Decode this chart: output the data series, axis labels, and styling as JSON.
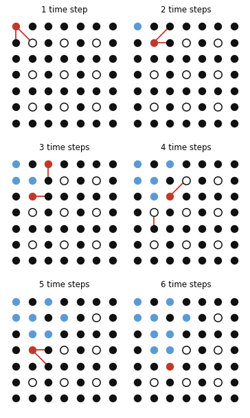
{
  "n_cols": 7,
  "n_rows": 7,
  "panels": [
    {
      "label": "1 time step",
      "open_circles": [
        [
          1,
          1
        ],
        [
          3,
          1
        ],
        [
          5,
          1
        ],
        [
          1,
          3
        ],
        [
          3,
          3
        ],
        [
          5,
          3
        ],
        [
          1,
          5
        ],
        [
          3,
          5
        ],
        [
          5,
          5
        ]
      ],
      "blue_circles": [],
      "red_circles": [
        [
          0,
          0
        ]
      ],
      "red_lines": [
        [
          [
            0,
            0
          ],
          [
            0,
            1
          ]
        ],
        [
          [
            0,
            0
          ],
          [
            1,
            1
          ]
        ]
      ]
    },
    {
      "label": "2 time steps",
      "open_circles": [
        [
          1,
          1
        ],
        [
          3,
          1
        ],
        [
          5,
          1
        ],
        [
          1,
          3
        ],
        [
          3,
          3
        ],
        [
          5,
          3
        ],
        [
          1,
          5
        ],
        [
          3,
          5
        ],
        [
          5,
          5
        ]
      ],
      "blue_circles": [
        [
          0,
          0
        ]
      ],
      "red_circles": [
        [
          1,
          1
        ]
      ],
      "red_lines": [
        [
          [
            1,
            1
          ],
          [
            2,
            0
          ]
        ],
        [
          [
            1,
            1
          ],
          [
            2,
            1
          ]
        ]
      ]
    },
    {
      "label": "3 time steps",
      "open_circles": [
        [
          1,
          1
        ],
        [
          3,
          1
        ],
        [
          5,
          1
        ],
        [
          1,
          3
        ],
        [
          3,
          3
        ],
        [
          5,
          3
        ],
        [
          1,
          5
        ],
        [
          3,
          5
        ],
        [
          5,
          5
        ]
      ],
      "blue_circles": [
        [
          0,
          0
        ],
        [
          0,
          1
        ],
        [
          1,
          1
        ]
      ],
      "red_circles": [
        [
          2,
          0
        ],
        [
          1,
          2
        ]
      ],
      "red_lines": [
        [
          [
            2,
            0
          ],
          [
            2,
            1
          ]
        ],
        [
          [
            1,
            2
          ],
          [
            2,
            2
          ]
        ]
      ]
    },
    {
      "label": "4 time steps",
      "open_circles": [
        [
          1,
          1
        ],
        [
          3,
          1
        ],
        [
          5,
          1
        ],
        [
          1,
          3
        ],
        [
          3,
          3
        ],
        [
          5,
          3
        ],
        [
          1,
          5
        ],
        [
          3,
          5
        ],
        [
          5,
          5
        ]
      ],
      "blue_circles": [
        [
          0,
          0
        ],
        [
          0,
          1
        ],
        [
          1,
          1
        ],
        [
          2,
          0
        ],
        [
          1,
          2
        ]
      ],
      "red_circles": [
        [
          2,
          2
        ]
      ],
      "red_lines": [
        [
          [
            2,
            2
          ],
          [
            3,
            1
          ]
        ],
        [
          [
            1,
            3
          ],
          [
            1,
            4
          ]
        ]
      ]
    },
    {
      "label": "5 time steps",
      "open_circles": [
        [
          1,
          1
        ],
        [
          3,
          1
        ],
        [
          5,
          1
        ],
        [
          1,
          3
        ],
        [
          3,
          3
        ],
        [
          5,
          3
        ],
        [
          1,
          5
        ],
        [
          3,
          5
        ],
        [
          5,
          5
        ]
      ],
      "blue_circles": [
        [
          0,
          0
        ],
        [
          0,
          1
        ],
        [
          1,
          1
        ],
        [
          2,
          0
        ],
        [
          1,
          2
        ],
        [
          2,
          2
        ],
        [
          3,
          1
        ]
      ],
      "red_circles": [
        [
          1,
          3
        ]
      ],
      "red_lines": [
        [
          [
            1,
            3
          ],
          [
            2,
            3
          ]
        ],
        [
          [
            1,
            3
          ],
          [
            2,
            4
          ]
        ]
      ]
    },
    {
      "label": "6 time steps",
      "open_circles": [
        [
          1,
          1
        ],
        [
          3,
          1
        ],
        [
          5,
          1
        ],
        [
          1,
          3
        ],
        [
          3,
          3
        ],
        [
          5,
          3
        ],
        [
          1,
          5
        ],
        [
          3,
          5
        ],
        [
          5,
          5
        ]
      ],
      "blue_circles": [
        [
          0,
          0
        ],
        [
          0,
          1
        ],
        [
          1,
          1
        ],
        [
          2,
          0
        ],
        [
          1,
          2
        ],
        [
          2,
          2
        ],
        [
          3,
          1
        ],
        [
          1,
          3
        ],
        [
          2,
          3
        ]
      ],
      "red_circles": [
        [
          2,
          4
        ]
      ],
      "red_lines": []
    }
  ],
  "black_dot_color": "#111111",
  "blue_color": "#5b9bd5",
  "red_color": "#c0392b",
  "bg_color": "#ffffff"
}
